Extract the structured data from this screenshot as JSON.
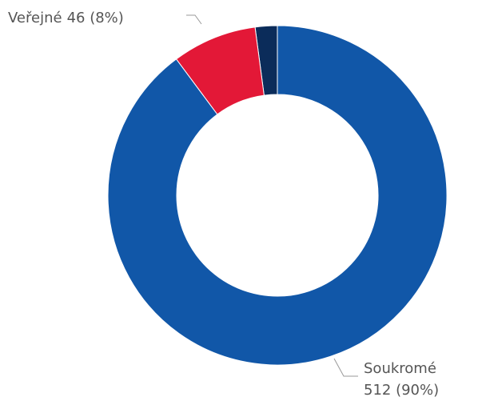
{
  "chart_data": {
    "type": "donut",
    "categories": [
      "Soukromé",
      "Veřejné",
      null
    ],
    "values": [
      512,
      46,
      12
    ],
    "value_labels": [
      "512 (90%)",
      "46 (8%)",
      null
    ],
    "colors": [
      "#1157a8",
      "#e31837",
      "#0b2c5a"
    ]
  }
}
